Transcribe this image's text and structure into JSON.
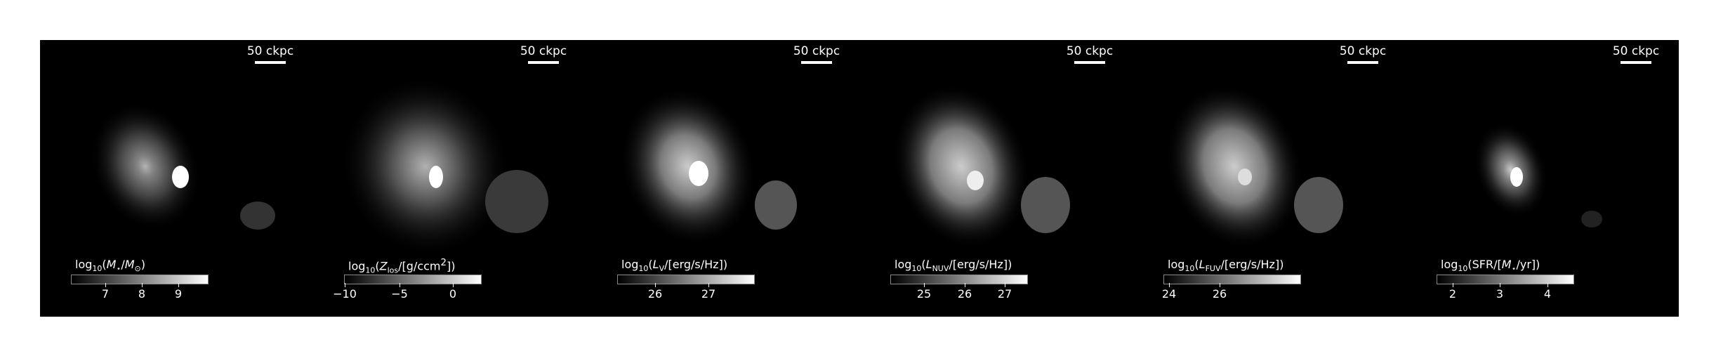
{
  "scale": "50 ckpc",
  "panels": [
    {
      "colorbar_label": [
        "log",
        "10",
        "(",
        "M",
        "⋆",
        "/",
        "M",
        "⊙",
        ")"
      ],
      "ticks": [
        "7",
        "8",
        "9"
      ]
    },
    {
      "colorbar_label": [
        "log",
        "10",
        "(",
        "Z",
        "los",
        "/[g/ccm",
        "2",
        "])",
        ""
      ],
      "ticks": [
        "−10",
        "−5",
        "0"
      ]
    },
    {
      "colorbar_label": [
        "log",
        "10",
        "(",
        "L",
        "V",
        "/[erg/s/Hz])",
        "",
        "",
        ""
      ],
      "ticks": [
        "26",
        "27"
      ]
    },
    {
      "colorbar_label": [
        "log",
        "10",
        "(",
        "L",
        "NUV",
        "/[erg/s/Hz])",
        "",
        "",
        ""
      ],
      "ticks": [
        "25",
        "26",
        "27"
      ]
    },
    {
      "colorbar_label": [
        "log",
        "10",
        "(",
        "L",
        "FUV",
        "/[erg/s/Hz])",
        "",
        "",
        ""
      ],
      "ticks": [
        "24",
        "26"
      ]
    },
    {
      "colorbar_label": [
        "log",
        "10",
        "(SFR/[",
        "M",
        "⋆",
        "/yr])",
        "",
        "",
        ""
      ],
      "ticks": [
        "2",
        "3",
        "4"
      ]
    }
  ]
}
